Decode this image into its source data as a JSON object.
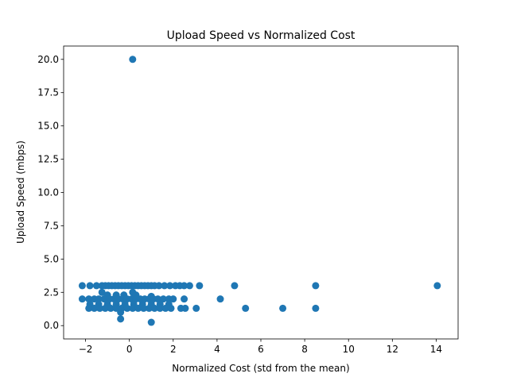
{
  "chart_data": {
    "type": "scatter",
    "title": "Upload Speed vs Normalized Cost",
    "xlabel": "Normalized Cost (std from the mean)",
    "ylabel": "Upload Speed (mbps)",
    "xlim": [
      -3.0,
      15.0
    ],
    "ylim": [
      -1.0,
      21.0
    ],
    "xticks": [
      -2,
      0,
      2,
      4,
      6,
      8,
      10,
      12,
      14
    ],
    "xtick_labels": [
      "−2",
      "0",
      "2",
      "4",
      "6",
      "8",
      "10",
      "12",
      "14"
    ],
    "yticks": [
      0.0,
      2.5,
      5.0,
      7.5,
      10.0,
      12.5,
      15.0,
      17.5,
      20.0
    ],
    "ytick_labels": [
      "0.0",
      "2.5",
      "5.0",
      "7.5",
      "10.0",
      "12.5",
      "15.0",
      "17.5",
      "20.0"
    ],
    "grid": false,
    "marker_color": "#1f77b4",
    "points": [
      {
        "x": 0.15,
        "y": 20.0
      },
      {
        "x": -2.15,
        "y": 3.0
      },
      {
        "x": -1.8,
        "y": 3.0
      },
      {
        "x": -1.5,
        "y": 3.0
      },
      {
        "x": -1.25,
        "y": 3.0
      },
      {
        "x": -1.1,
        "y": 3.0
      },
      {
        "x": -0.95,
        "y": 3.0
      },
      {
        "x": -0.8,
        "y": 3.0
      },
      {
        "x": -0.65,
        "y": 3.0
      },
      {
        "x": -0.5,
        "y": 3.0
      },
      {
        "x": -0.35,
        "y": 3.0
      },
      {
        "x": -0.2,
        "y": 3.0
      },
      {
        "x": -0.05,
        "y": 3.0
      },
      {
        "x": 0.1,
        "y": 3.0
      },
      {
        "x": 0.25,
        "y": 3.0
      },
      {
        "x": 0.4,
        "y": 3.0
      },
      {
        "x": 0.55,
        "y": 3.0
      },
      {
        "x": 0.7,
        "y": 3.0
      },
      {
        "x": 0.85,
        "y": 3.0
      },
      {
        "x": 1.0,
        "y": 3.0
      },
      {
        "x": 1.15,
        "y": 3.0
      },
      {
        "x": 1.35,
        "y": 3.0
      },
      {
        "x": 1.6,
        "y": 3.0
      },
      {
        "x": 1.85,
        "y": 3.0
      },
      {
        "x": 2.1,
        "y": 3.0
      },
      {
        "x": 2.3,
        "y": 3.0
      },
      {
        "x": 2.5,
        "y": 3.0
      },
      {
        "x": 2.75,
        "y": 3.0
      },
      {
        "x": 3.2,
        "y": 3.0
      },
      {
        "x": 4.8,
        "y": 3.0
      },
      {
        "x": 8.5,
        "y": 3.0
      },
      {
        "x": 14.05,
        "y": 3.0
      },
      {
        "x": -1.25,
        "y": 2.5
      },
      {
        "x": 0.15,
        "y": 2.5
      },
      {
        "x": -1.0,
        "y": 2.3
      },
      {
        "x": -0.6,
        "y": 2.3
      },
      {
        "x": -0.25,
        "y": 2.3
      },
      {
        "x": 0.3,
        "y": 2.3
      },
      {
        "x": 1.0,
        "y": 2.2
      },
      {
        "x": -2.15,
        "y": 2.0
      },
      {
        "x": -1.85,
        "y": 2.0
      },
      {
        "x": -1.6,
        "y": 2.0
      },
      {
        "x": -1.4,
        "y": 2.0
      },
      {
        "x": -1.15,
        "y": 2.0
      },
      {
        "x": -0.9,
        "y": 2.0
      },
      {
        "x": -0.7,
        "y": 2.0
      },
      {
        "x": -0.5,
        "y": 2.0
      },
      {
        "x": -0.3,
        "y": 2.0
      },
      {
        "x": -0.1,
        "y": 2.0
      },
      {
        "x": 0.1,
        "y": 2.0
      },
      {
        "x": 0.3,
        "y": 2.0
      },
      {
        "x": 0.5,
        "y": 2.0
      },
      {
        "x": 0.7,
        "y": 2.0
      },
      {
        "x": 0.9,
        "y": 2.0
      },
      {
        "x": 1.1,
        "y": 2.0
      },
      {
        "x": 1.3,
        "y": 2.0
      },
      {
        "x": 1.55,
        "y": 2.0
      },
      {
        "x": 1.8,
        "y": 2.0
      },
      {
        "x": 2.0,
        "y": 2.0
      },
      {
        "x": 2.5,
        "y": 2.0
      },
      {
        "x": 4.15,
        "y": 2.0
      },
      {
        "x": -1.8,
        "y": 1.6
      },
      {
        "x": -1.4,
        "y": 1.6
      },
      {
        "x": -1.0,
        "y": 1.6
      },
      {
        "x": -0.6,
        "y": 1.6
      },
      {
        "x": -0.2,
        "y": 1.6
      },
      {
        "x": 0.2,
        "y": 1.6
      },
      {
        "x": 0.6,
        "y": 1.6
      },
      {
        "x": 1.0,
        "y": 1.6
      },
      {
        "x": 1.4,
        "y": 1.6
      },
      {
        "x": 1.8,
        "y": 1.6
      },
      {
        "x": -1.85,
        "y": 1.3
      },
      {
        "x": -1.6,
        "y": 1.3
      },
      {
        "x": -1.35,
        "y": 1.3
      },
      {
        "x": -1.1,
        "y": 1.3
      },
      {
        "x": -0.85,
        "y": 1.3
      },
      {
        "x": -0.6,
        "y": 1.3
      },
      {
        "x": -0.35,
        "y": 1.3
      },
      {
        "x": -0.1,
        "y": 1.3
      },
      {
        "x": 0.15,
        "y": 1.3
      },
      {
        "x": 0.4,
        "y": 1.3
      },
      {
        "x": 0.65,
        "y": 1.3
      },
      {
        "x": 0.9,
        "y": 1.3
      },
      {
        "x": 1.15,
        "y": 1.3
      },
      {
        "x": 1.4,
        "y": 1.3
      },
      {
        "x": 1.65,
        "y": 1.3
      },
      {
        "x": 1.9,
        "y": 1.3
      },
      {
        "x": 2.35,
        "y": 1.3
      },
      {
        "x": 2.55,
        "y": 1.3
      },
      {
        "x": 3.05,
        "y": 1.3
      },
      {
        "x": 5.3,
        "y": 1.3
      },
      {
        "x": 7.0,
        "y": 1.3
      },
      {
        "x": 8.5,
        "y": 1.3
      },
      {
        "x": -0.4,
        "y": 1.0
      },
      {
        "x": -0.4,
        "y": 0.5
      },
      {
        "x": 1.0,
        "y": 0.25
      }
    ]
  }
}
